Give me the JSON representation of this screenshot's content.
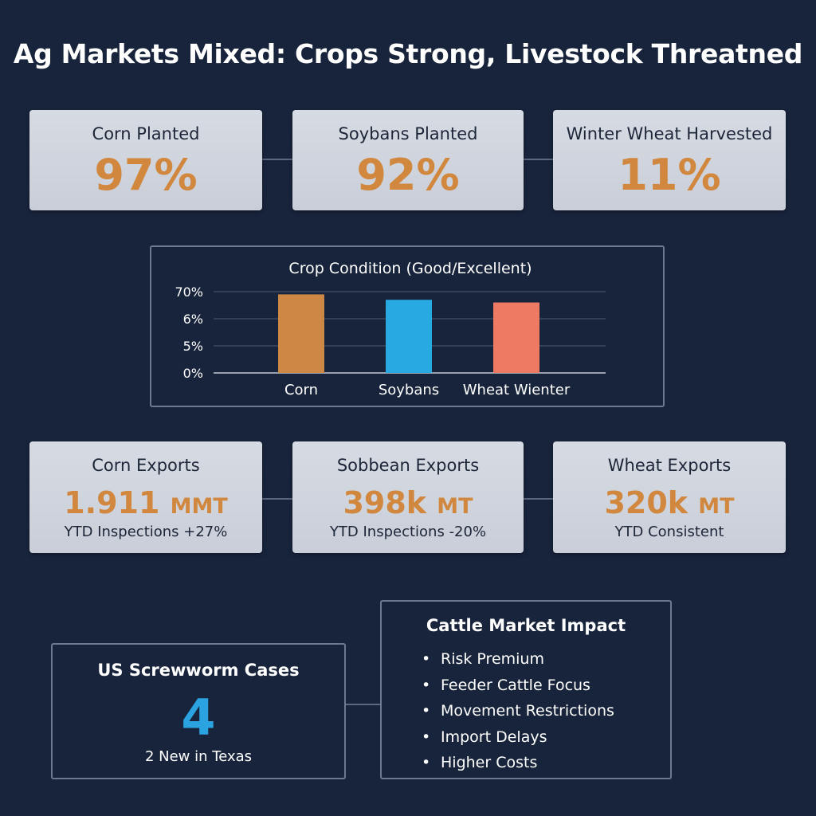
{
  "title": "Ag Markets Mixed: Crops Strong, Livestock Threatned",
  "progress": [
    {
      "label": "Corn Planted",
      "value": "97%"
    },
    {
      "label": "Soybans Planted",
      "value": "92%"
    },
    {
      "label": "Winter Wheat Harvested",
      "value": "11%"
    }
  ],
  "chart_data": {
    "type": "bar",
    "title": "Crop Condition (Good/Excellent)",
    "categories": [
      "Corn",
      "Soybans",
      "Wheat Wienter"
    ],
    "values": [
      6.9,
      6.7,
      6.6
    ],
    "yticks": [
      "0%",
      "5%",
      "6%",
      "70%"
    ],
    "colors": [
      "#cc8844",
      "#29a9e1",
      "#ee7a64"
    ],
    "grid": true,
    "xlabel": "",
    "ylabel": ""
  },
  "exports": [
    {
      "label": "Corn Exports",
      "value": "1.911",
      "unit": "MMT",
      "note": "YTD Inspections +27%"
    },
    {
      "label": "Sobbean Exports",
      "value": "398k",
      "unit": "MT",
      "note": "YTD Inspections -20%"
    },
    {
      "label": "Wheat Exports",
      "value": "320k",
      "unit": "MT",
      "note": "YTD Consistent"
    }
  ],
  "screwworm": {
    "title": "US Screwworm Cases",
    "value": "4",
    "note": "2 New in Texas"
  },
  "cattle": {
    "title": "Cattle Market Impact",
    "bullet": "•",
    "items": [
      "Risk Premium",
      "Feeder Cattle Focus",
      "Movement Restrictions",
      "Import Delays",
      "Higher Costs"
    ]
  }
}
